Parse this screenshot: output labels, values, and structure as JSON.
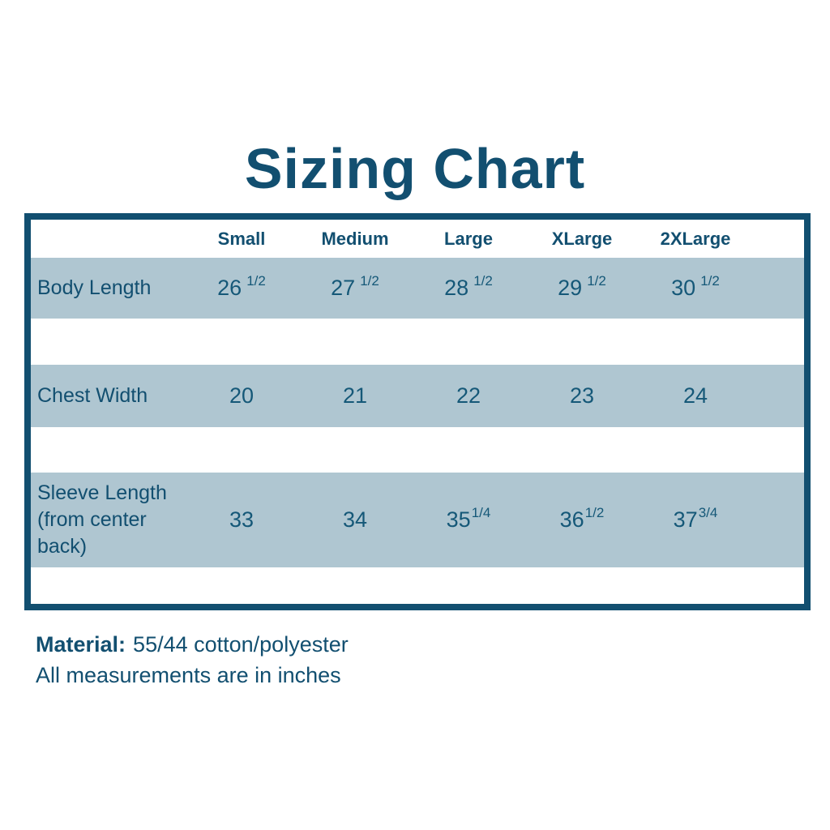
{
  "title": "Sizing Chart",
  "theme": {
    "text_color": "#124F70",
    "band_color": "#AFC6D1",
    "border_color": "#124F70",
    "background": "#FFFFFF"
  },
  "table": {
    "headers": [
      "Small",
      "Medium",
      "Large",
      "XLarge",
      "2XLarge"
    ],
    "rows": [
      {
        "label": "Body Length",
        "cells": [
          {
            "whole": "26",
            "frac": "1/2"
          },
          {
            "whole": "27",
            "frac": "1/2"
          },
          {
            "whole": "28",
            "frac": "1/2"
          },
          {
            "whole": "29",
            "frac": "1/2"
          },
          {
            "whole": "30",
            "frac": "1/2"
          }
        ]
      },
      {
        "label": "Chest Width",
        "cells": [
          {
            "whole": "20"
          },
          {
            "whole": "21"
          },
          {
            "whole": "22"
          },
          {
            "whole": "23"
          },
          {
            "whole": "24"
          }
        ]
      },
      {
        "label": "Sleeve Length (from center back)",
        "cells": [
          {
            "whole": "33"
          },
          {
            "whole": "34"
          },
          {
            "whole": "35",
            "frac": "1/4"
          },
          {
            "whole": "36",
            "frac": "1/2"
          },
          {
            "whole": "37",
            "frac": "3/4"
          }
        ]
      }
    ]
  },
  "footer": {
    "material_label": "Material:",
    "material_value": "55/44 cotton/polyester",
    "note": "All measurements are in inches"
  },
  "chart_data": {
    "type": "table",
    "title": "Sizing Chart",
    "columns": [
      "",
      "Small",
      "Medium",
      "Large",
      "XLarge",
      "2XLarge"
    ],
    "rows": [
      [
        "Body Length",
        "26 1/2",
        "27 1/2",
        "28 1/2",
        "29 1/2",
        "30 1/2"
      ],
      [
        "Chest Width",
        "20",
        "21",
        "22",
        "23",
        "24"
      ],
      [
        "Sleeve Length (from center back)",
        "33",
        "34",
        "35 1/4",
        "36 1/2",
        "37 3/4"
      ]
    ],
    "notes": [
      "Material: 55/44 cotton/polyester",
      "All measurements are in inches"
    ]
  }
}
